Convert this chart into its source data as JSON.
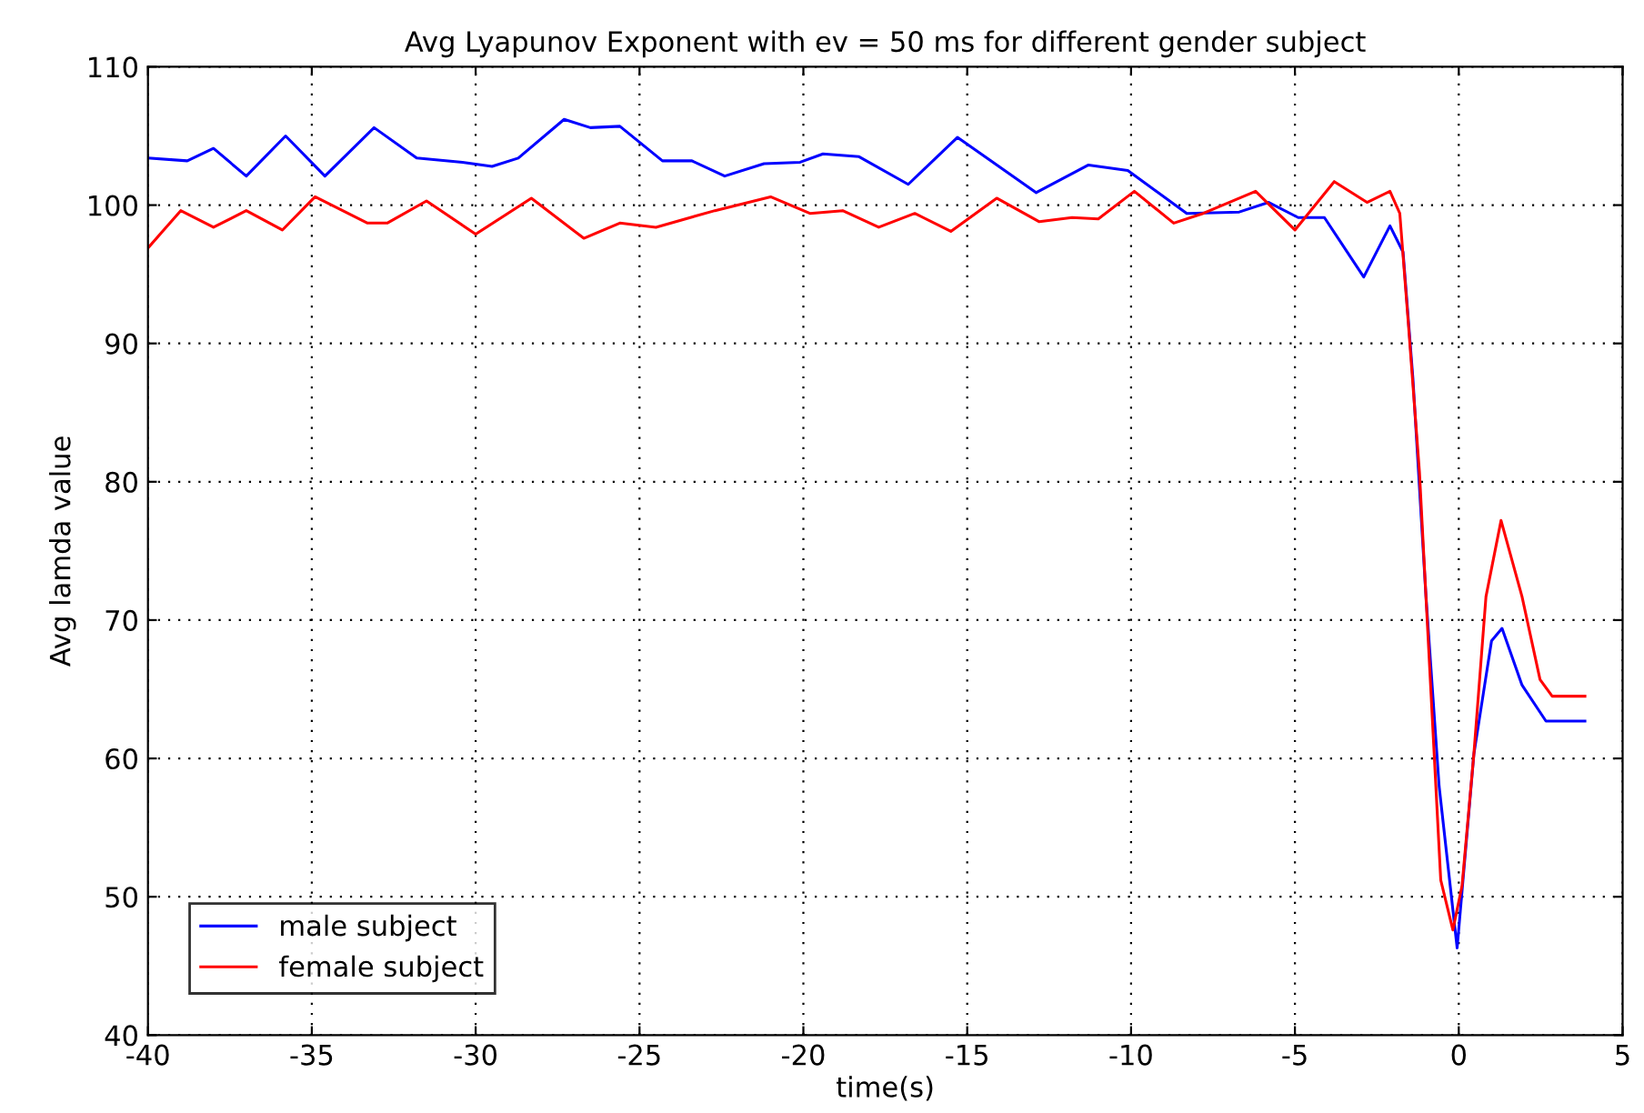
{
  "chart_data": {
    "type": "line",
    "title": "Avg Lyapunov Exponent with ev = 50 ms for different gender subject",
    "xlabel": "time(s)",
    "ylabel": "Avg lamda value",
    "xlim": [
      -40,
      5
    ],
    "xticks": [
      -40,
      -35,
      -30,
      -25,
      -20,
      -15,
      -10,
      -5,
      0,
      5
    ],
    "ylim": [
      40,
      110
    ],
    "yticks": [
      40,
      50,
      60,
      70,
      80,
      90,
      100,
      110
    ],
    "grid": true,
    "legend": "bottom left",
    "line_style": "solid",
    "marker": "none",
    "series": [
      {
        "name": "male subject",
        "color": "#0000ff",
        "x": [
          -40,
          -38.8,
          -38.0,
          -37.0,
          -35.8,
          -34.6,
          -33.1,
          -31.8,
          -30.4,
          -29.5,
          -28.7,
          -27.3,
          -26.5,
          -25.6,
          -24.3,
          -23.4,
          -22.4,
          -21.2,
          -20.1,
          -19.4,
          -18.3,
          -16.8,
          -15.3,
          -14.4,
          -12.9,
          -11.3,
          -10.1,
          -8.3,
          -6.7,
          -5.8,
          -4.9,
          -4.1,
          -2.9,
          -2.1,
          -1.7,
          -1.4,
          -1.0,
          -0.6,
          -0.05,
          0.46,
          1.0,
          1.32,
          1.93,
          2.66,
          3.85
        ],
        "values": [
          103.4,
          103.2,
          104.1,
          102.1,
          105.0,
          102.1,
          105.6,
          103.4,
          103.1,
          102.8,
          103.4,
          106.2,
          105.6,
          105.7,
          103.2,
          103.2,
          102.1,
          103.0,
          103.1,
          103.7,
          103.5,
          101.5,
          104.9,
          103.4,
          100.9,
          102.9,
          102.5,
          99.4,
          99.5,
          100.2,
          99.1,
          99.1,
          94.8,
          98.5,
          96.6,
          87.5,
          71.7,
          58.0,
          46.3,
          60.3,
          68.5,
          69.4,
          65.3,
          62.7,
          62.7
        ]
      },
      {
        "name": "female subject",
        "color": "#ff0000",
        "x": [
          -40,
          -39.0,
          -38.0,
          -37.0,
          -35.9,
          -34.9,
          -33.3,
          -32.7,
          -31.5,
          -30.0,
          -28.3,
          -26.7,
          -25.6,
          -24.5,
          -22.7,
          -21.0,
          -19.8,
          -18.8,
          -17.7,
          -16.6,
          -15.5,
          -14.1,
          -12.8,
          -11.8,
          -11.0,
          -9.9,
          -8.7,
          -7.8,
          -6.2,
          -5.0,
          -3.8,
          -2.8,
          -2.1,
          -1.8,
          -1.56,
          -1.2,
          -0.9,
          -0.55,
          -0.18,
          0.1,
          0.46,
          0.83,
          1.29,
          1.93,
          2.48,
          2.85,
          3.85
        ],
        "values": [
          96.9,
          99.6,
          98.4,
          99.6,
          98.2,
          100.6,
          98.7,
          98.7,
          100.3,
          97.9,
          100.5,
          97.6,
          98.7,
          98.4,
          99.6,
          100.6,
          99.4,
          99.6,
          98.4,
          99.4,
          98.1,
          100.5,
          98.8,
          99.1,
          99.0,
          101.0,
          98.7,
          99.4,
          101.0,
          98.2,
          101.7,
          100.2,
          101.0,
          99.4,
          92.1,
          80.7,
          67.1,
          51.2,
          47.6,
          50.8,
          60.3,
          71.7,
          77.2,
          71.7,
          65.7,
          64.5,
          64.5
        ]
      }
    ]
  }
}
